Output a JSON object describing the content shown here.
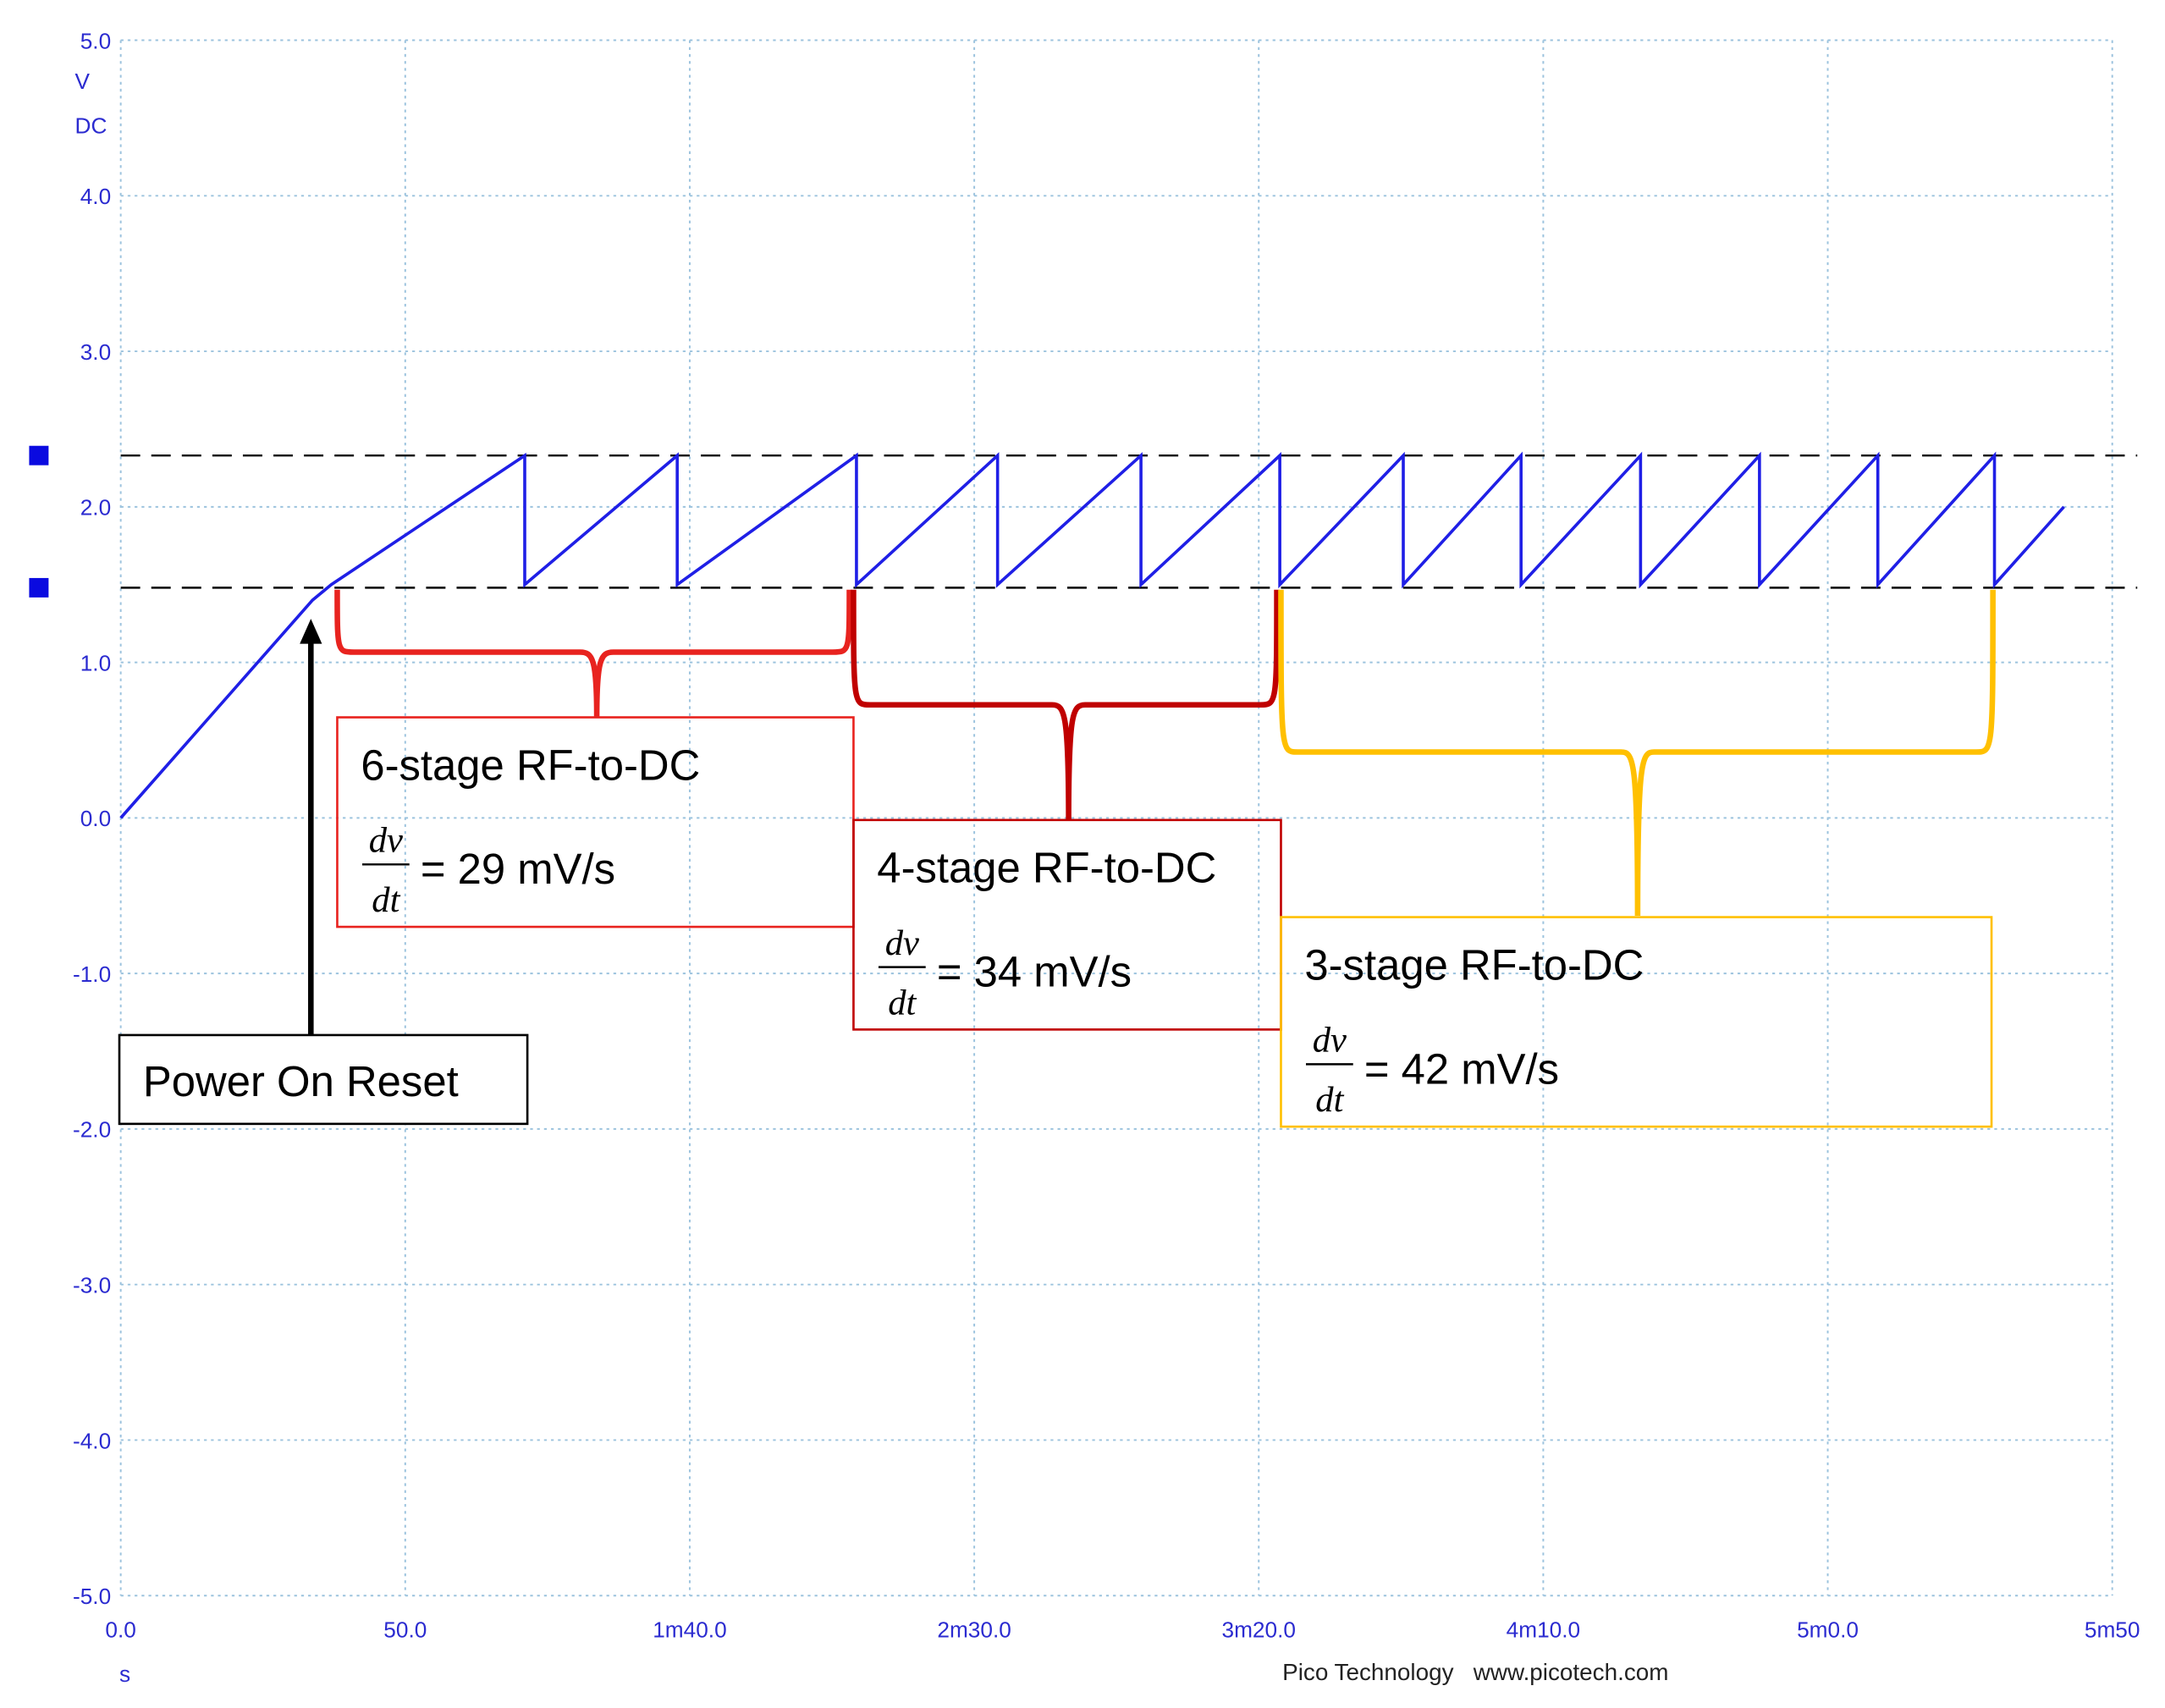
{
  "chart_data": {
    "type": "line",
    "x_unit": "s",
    "y_unit": "V",
    "y_coupling": "DC",
    "credit": "Pico Technology   www.picotech.com",
    "xlim": [
      0,
      350
    ],
    "ylim": [
      -5,
      5
    ],
    "xticks": [
      {
        "value": 0,
        "label": "0.0"
      },
      {
        "value": 50,
        "label": "50.0"
      },
      {
        "value": 100,
        "label": "1m40.0"
      },
      {
        "value": 150,
        "label": "2m30.0"
      },
      {
        "value": 200,
        "label": "3m20.0"
      },
      {
        "value": 250,
        "label": "4m10.0"
      },
      {
        "value": 300,
        "label": "5m0.0"
      },
      {
        "value": 350,
        "label": "5m50"
      }
    ],
    "yticks": [
      {
        "value": 5,
        "label": "5.0"
      },
      {
        "value": 4,
        "label": "4.0"
      },
      {
        "value": 3,
        "label": "3.0"
      },
      {
        "value": 2,
        "label": "2.0"
      },
      {
        "value": 1,
        "label": "1.0"
      },
      {
        "value": 0,
        "label": "0.0"
      },
      {
        "value": -1,
        "label": "-1.0"
      },
      {
        "value": -2,
        "label": "-2.0"
      },
      {
        "value": -3,
        "label": "-3.0"
      },
      {
        "value": -4,
        "label": "-4.0"
      },
      {
        "value": -5,
        "label": "-5.0"
      }
    ],
    "grid": true,
    "reference_lines": [
      2.33,
      1.48
    ],
    "series": [
      {
        "color": "#1f1fe6",
        "x": [
          0,
          33.7,
          37,
          71,
          71,
          97.8,
          97.8,
          129.3,
          129.3,
          154.1,
          154.1,
          179.3,
          179.3,
          203.7,
          203.7,
          225.4,
          225.4,
          246.1,
          246.1,
          267.1,
          267.1,
          288,
          288,
          308.8,
          308.8,
          329.3,
          329.3,
          341.5
        ],
        "values": [
          0,
          1.4,
          1.5,
          2.33,
          1.5,
          2.33,
          1.5,
          2.33,
          1.5,
          2.33,
          1.5,
          2.33,
          1.5,
          2.33,
          1.5,
          2.33,
          1.5,
          2.33,
          1.5,
          2.33,
          1.5,
          2.33,
          1.5,
          2.33,
          1.5,
          2.33,
          1.5,
          2.0
        ]
      }
    ],
    "annotations": [
      {
        "title": "6-stage RF-to-DC",
        "num": "dv",
        "den": "dt",
        "rate": "= 29 mV/s",
        "color": "#e8231f"
      },
      {
        "title": "4-stage RF-to-DC",
        "num": "dv",
        "den": "dt",
        "rate": "= 34 mV/s",
        "color": "#c00000"
      },
      {
        "title": "3-stage RF-to-DC",
        "num": "dv",
        "den": "dt",
        "rate": "= 42 mV/s",
        "color": "#ffc000"
      }
    ],
    "marker_text": "Power On Reset"
  }
}
